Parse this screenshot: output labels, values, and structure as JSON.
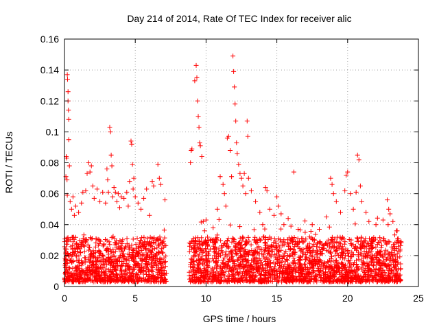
{
  "chart_data": {
    "type": "scatter",
    "title": "Day 214 of 2014, Rate Of TEC Index for receiver alic",
    "xlabel": "GPS time / hours",
    "ylabel": "ROTI / TECUs",
    "xlim": [
      0,
      25
    ],
    "ylim": [
      0,
      0.16
    ],
    "xticks": [
      0,
      5,
      10,
      15,
      20,
      25
    ],
    "xtick_labels": [
      "0",
      "5",
      "10",
      "15",
      "20",
      "25"
    ],
    "yticks": [
      0,
      0.02,
      0.04,
      0.06,
      0.08,
      0.1,
      0.12,
      0.14,
      0.16
    ],
    "ytick_labels": [
      "0",
      "0.02",
      "0.04",
      "0.06",
      "0.08",
      "0.1",
      "0.12",
      "0.14",
      "0.16"
    ],
    "grid": true,
    "marker": "plus",
    "color": "#ff0000",
    "series": [
      {
        "name": "ROTI",
        "points": [
          [
            0.1,
            0.071
          ],
          [
            0.12,
            0.084
          ],
          [
            0.15,
            0.083
          ],
          [
            0.18,
            0.069
          ],
          [
            0.2,
            0.137
          ],
          [
            0.22,
            0.134
          ],
          [
            0.25,
            0.126
          ],
          [
            0.25,
            0.12
          ],
          [
            0.28,
            0.114
          ],
          [
            0.3,
            0.108
          ],
          [
            0.3,
            0.095
          ],
          [
            0.35,
            0.078
          ],
          [
            0.2,
            0.059
          ],
          [
            0.4,
            0.055
          ],
          [
            0.5,
            0.05
          ],
          [
            0.6,
            0.058
          ],
          [
            0.7,
            0.046
          ],
          [
            0.8,
            0.052
          ],
          [
            1.0,
            0.048
          ],
          [
            1.2,
            0.054
          ],
          [
            1.3,
            0.061
          ],
          [
            1.5,
            0.062
          ],
          [
            1.6,
            0.073
          ],
          [
            1.7,
            0.08
          ],
          [
            1.8,
            0.074
          ],
          [
            1.9,
            0.078
          ],
          [
            2.0,
            0.065
          ],
          [
            2.1,
            0.057
          ],
          [
            2.3,
            0.063
          ],
          [
            2.5,
            0.055
          ],
          [
            2.7,
            0.061
          ],
          [
            2.9,
            0.054
          ],
          [
            3.0,
            0.076
          ],
          [
            3.05,
            0.069
          ],
          [
            3.1,
            0.061
          ],
          [
            3.2,
            0.103
          ],
          [
            3.25,
            0.1
          ],
          [
            3.3,
            0.085
          ],
          [
            3.35,
            0.078
          ],
          [
            3.4,
            0.058
          ],
          [
            3.5,
            0.064
          ],
          [
            3.6,
            0.061
          ],
          [
            3.7,
            0.055
          ],
          [
            3.8,
            0.06
          ],
          [
            3.9,
            0.051
          ],
          [
            4.0,
            0.058
          ],
          [
            4.2,
            0.057
          ],
          [
            4.4,
            0.061
          ],
          [
            4.5,
            0.052
          ],
          [
            4.6,
            0.068
          ],
          [
            4.7,
            0.094
          ],
          [
            4.75,
            0.092
          ],
          [
            4.8,
            0.079
          ],
          [
            4.85,
            0.063
          ],
          [
            4.9,
            0.07
          ],
          [
            5.0,
            0.058
          ],
          [
            5.2,
            0.054
          ],
          [
            5.4,
            0.05
          ],
          [
            5.6,
            0.057
          ],
          [
            5.8,
            0.063
          ],
          [
            6.0,
            0.046
          ],
          [
            6.2,
            0.068
          ],
          [
            6.3,
            0.065
          ],
          [
            6.6,
            0.079
          ],
          [
            6.7,
            0.07
          ],
          [
            6.8,
            0.066
          ],
          [
            7.1,
            0.056
          ],
          [
            8.9,
            0.08
          ],
          [
            8.95,
            0.088
          ],
          [
            9.0,
            0.089
          ],
          [
            9.2,
            0.133
          ],
          [
            9.3,
            0.143
          ],
          [
            9.35,
            0.135
          ],
          [
            9.4,
            0.12
          ],
          [
            9.45,
            0.11
          ],
          [
            9.5,
            0.103
          ],
          [
            9.55,
            0.093
          ],
          [
            9.6,
            0.091
          ],
          [
            9.7,
            0.084
          ],
          [
            9.8,
            0.042
          ],
          [
            9.9,
            0.036
          ],
          [
            10.0,
            0.043
          ],
          [
            10.5,
            0.038
          ],
          [
            10.8,
            0.05
          ],
          [
            11.0,
            0.071
          ],
          [
            11.2,
            0.066
          ],
          [
            11.3,
            0.06
          ],
          [
            11.4,
            0.052
          ],
          [
            11.5,
            0.096
          ],
          [
            11.6,
            0.097
          ],
          [
            11.7,
            0.088
          ],
          [
            11.8,
            0.071
          ],
          [
            11.9,
            0.149
          ],
          [
            11.95,
            0.139
          ],
          [
            12.0,
            0.129
          ],
          [
            12.05,
            0.118
          ],
          [
            12.1,
            0.107
          ],
          [
            12.15,
            0.093
          ],
          [
            12.2,
            0.086
          ],
          [
            12.3,
            0.079
          ],
          [
            12.4,
            0.073
          ],
          [
            12.5,
            0.07
          ],
          [
            12.6,
            0.065
          ],
          [
            12.7,
            0.073
          ],
          [
            12.8,
            0.06
          ],
          [
            12.9,
            0.107
          ],
          [
            12.95,
            0.097
          ],
          [
            13.0,
            0.07
          ],
          [
            13.2,
            0.062
          ],
          [
            13.5,
            0.055
          ],
          [
            13.8,
            0.048
          ],
          [
            14.0,
            0.04
          ],
          [
            14.2,
            0.064
          ],
          [
            14.3,
            0.062
          ],
          [
            14.5,
            0.05
          ],
          [
            14.8,
            0.046
          ],
          [
            15.0,
            0.058
          ],
          [
            15.1,
            0.052
          ],
          [
            15.3,
            0.047
          ],
          [
            15.5,
            0.04
          ],
          [
            15.8,
            0.044
          ],
          [
            16.0,
            0.039
          ],
          [
            16.2,
            0.074
          ],
          [
            16.5,
            0.037
          ],
          [
            17.0,
            0.035
          ],
          [
            17.5,
            0.04
          ],
          [
            18.0,
            0.037
          ],
          [
            18.5,
            0.045
          ],
          [
            18.8,
            0.07
          ],
          [
            18.9,
            0.066
          ],
          [
            19.0,
            0.06
          ],
          [
            19.2,
            0.055
          ],
          [
            19.5,
            0.048
          ],
          [
            19.8,
            0.062
          ],
          [
            19.9,
            0.072
          ],
          [
            20.0,
            0.074
          ],
          [
            20.2,
            0.06
          ],
          [
            20.4,
            0.05
          ],
          [
            20.6,
            0.061
          ],
          [
            20.7,
            0.085
          ],
          [
            20.8,
            0.082
          ],
          [
            20.9,
            0.065
          ],
          [
            21.0,
            0.055
          ],
          [
            21.3,
            0.048
          ],
          [
            21.5,
            0.042
          ],
          [
            22.0,
            0.04
          ],
          [
            22.5,
            0.043
          ],
          [
            22.8,
            0.056
          ],
          [
            22.9,
            0.05
          ],
          [
            23.0,
            0.047
          ],
          [
            23.2,
            0.042
          ],
          [
            23.5,
            0.036
          ]
        ],
        "dense_band": {
          "x_ranges": [
            [
              0.0,
              7.2
            ],
            [
              8.8,
              23.8
            ]
          ],
          "y_min": 0.003,
          "y_typical_max": 0.032,
          "estimated_points": 3000
        }
      }
    ]
  }
}
